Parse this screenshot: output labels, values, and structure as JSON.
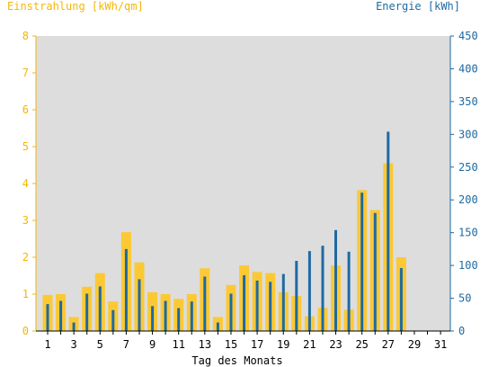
{
  "chart_data": {
    "type": "bar",
    "xlabel": "Tag des Monats",
    "ylabel_left": "Einstrahlung [kWh/qm]",
    "ylabel_right": "Energie [kWh]",
    "ylim_left": [
      0,
      8
    ],
    "ylim_right": [
      0,
      450
    ],
    "yticks_left": [
      0,
      1,
      2,
      3,
      4,
      5,
      6,
      7,
      8
    ],
    "yticks_right": [
      0,
      50,
      100,
      150,
      200,
      250,
      300,
      350,
      400,
      450
    ],
    "xticks": [
      1,
      3,
      5,
      7,
      9,
      11,
      13,
      15,
      17,
      19,
      21,
      23,
      25,
      27,
      29,
      31
    ],
    "days": [
      1,
      2,
      3,
      4,
      5,
      6,
      7,
      8,
      9,
      10,
      11,
      12,
      13,
      14,
      15,
      16,
      17,
      18,
      19,
      20,
      21,
      22,
      23,
      24,
      25,
      26,
      27,
      28,
      29,
      30,
      31
    ],
    "grid": false,
    "series": [
      {
        "name": "Einstrahlung [kWh/qm]",
        "axis": "left",
        "color": "#fcc934",
        "values": [
          0.98,
          1.0,
          0.38,
          1.2,
          1.57,
          0.8,
          2.68,
          1.86,
          1.05,
          1.0,
          0.87,
          1.0,
          1.7,
          0.38,
          1.25,
          1.78,
          1.6,
          1.57,
          1.05,
          0.95,
          0.4,
          0.63,
          1.78,
          0.58,
          3.82,
          3.28,
          4.55,
          2.0,
          null,
          null,
          null
        ]
      },
      {
        "name": "Energie [kWh]",
        "axis": "right",
        "color": "#1d6aa3",
        "values": [
          41,
          46,
          13,
          57,
          68,
          32,
          125,
          79,
          38,
          46,
          35,
          45,
          83,
          13,
          57,
          85,
          77,
          75,
          87,
          107,
          122,
          130,
          154,
          121,
          211,
          180,
          304,
          96,
          null,
          null,
          null
        ]
      }
    ]
  }
}
